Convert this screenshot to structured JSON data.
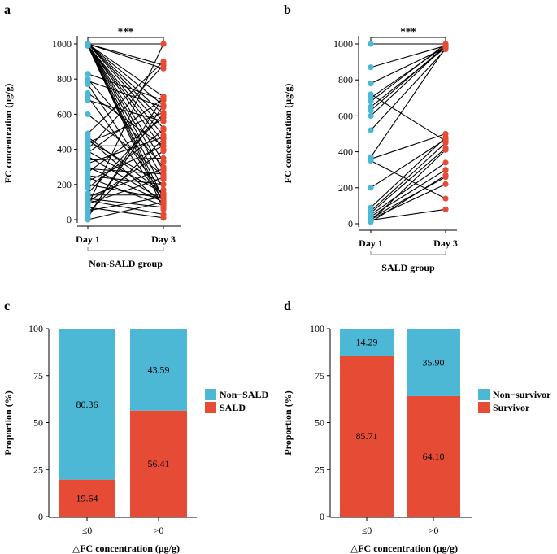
{
  "colors": {
    "blue": "#4cb8d5",
    "red": "#e64b35",
    "line": "#000000",
    "axis": "#000000"
  },
  "chart_data": [
    {
      "panel": "a",
      "type": "line",
      "subtype": "paired-dot",
      "ylabel": "FC concentration (μg/g)",
      "categories": [
        "Day 1",
        "Day 3"
      ],
      "group_label": "Non-SALD group",
      "significance": "***",
      "ylim": [
        0,
        1000
      ],
      "yticks": [
        "0",
        "200",
        "400",
        "600",
        "800",
        "1000"
      ],
      "pairs": [
        [
          1000,
          1000
        ],
        [
          1000,
          880
        ],
        [
          1000,
          860
        ],
        [
          1000,
          700
        ],
        [
          1000,
          650
        ],
        [
          1000,
          600
        ],
        [
          1000,
          560
        ],
        [
          1000,
          520
        ],
        [
          990,
          480
        ],
        [
          990,
          440
        ],
        [
          990,
          400
        ],
        [
          990,
          330
        ],
        [
          990,
          280
        ],
        [
          990,
          230
        ],
        [
          990,
          170
        ],
        [
          990,
          120
        ],
        [
          990,
          90
        ],
        [
          990,
          60
        ],
        [
          830,
          680
        ],
        [
          800,
          300
        ],
        [
          790,
          640
        ],
        [
          770,
          130
        ],
        [
          720,
          420
        ],
        [
          700,
          110
        ],
        [
          680,
          560
        ],
        [
          600,
          250
        ],
        [
          490,
          900
        ],
        [
          470,
          150
        ],
        [
          460,
          90
        ],
        [
          450,
          200
        ],
        [
          440,
          610
        ],
        [
          420,
          420
        ],
        [
          400,
          880
        ],
        [
          390,
          150
        ],
        [
          380,
          690
        ],
        [
          360,
          110
        ],
        [
          340,
          350
        ],
        [
          320,
          470
        ],
        [
          300,
          100
        ],
        [
          290,
          260
        ],
        [
          270,
          580
        ],
        [
          250,
          200
        ],
        [
          240,
          80
        ],
        [
          220,
          420
        ],
        [
          200,
          120
        ],
        [
          180,
          510
        ],
        [
          150,
          600
        ],
        [
          140,
          140
        ],
        [
          130,
          290
        ],
        [
          120,
          70
        ],
        [
          110,
          30
        ],
        [
          100,
          390
        ],
        [
          90,
          240
        ],
        [
          80,
          1000
        ],
        [
          70,
          10
        ],
        [
          50,
          130
        ],
        [
          40,
          460
        ],
        [
          20,
          650
        ],
        [
          10,
          700
        ],
        [
          0,
          100
        ]
      ]
    },
    {
      "panel": "b",
      "type": "line",
      "subtype": "paired-dot",
      "ylabel": "FC concentration (μg/g)",
      "categories": [
        "Day 1",
        "Day 3"
      ],
      "group_label": "SALD group",
      "significance": "***",
      "ylim": [
        0,
        1000
      ],
      "yticks": [
        "0",
        "200",
        "400",
        "600",
        "800",
        "1000"
      ],
      "pairs": [
        [
          1000,
          1000
        ],
        [
          870,
          990
        ],
        [
          780,
          980
        ],
        [
          720,
          460
        ],
        [
          700,
          990
        ],
        [
          680,
          1000
        ],
        [
          650,
          980
        ],
        [
          630,
          990
        ],
        [
          600,
          990
        ],
        [
          520,
          970
        ],
        [
          370,
          980
        ],
        [
          360,
          500
        ],
        [
          350,
          140
        ],
        [
          200,
          470
        ],
        [
          90,
          480
        ],
        [
          70,
          450
        ],
        [
          60,
          420
        ],
        [
          50,
          340
        ],
        [
          40,
          300
        ],
        [
          30,
          260
        ],
        [
          25,
          220
        ],
        [
          20,
          80
        ],
        [
          15,
          410
        ],
        [
          10,
          270
        ]
      ]
    },
    {
      "panel": "c",
      "type": "bar",
      "subtype": "stacked-percent",
      "xlabel": "△FC concentration (μg/g)",
      "ylabel": "Proportion (%)",
      "categories": [
        "≤0",
        ">0"
      ],
      "ylim": [
        0,
        100
      ],
      "yticks": [
        "0",
        "25",
        "50",
        "75",
        "100"
      ],
      "series": [
        {
          "name": "SALD",
          "color": "#e64b35",
          "values": [
            19.64,
            56.41
          ],
          "labels": [
            "19.64",
            "56.41"
          ]
        },
        {
          "name": "Non−SALD",
          "color": "#4cb8d5",
          "values": [
            80.36,
            43.59
          ],
          "labels": [
            "80.36",
            "43.59"
          ]
        }
      ],
      "legend": [
        "Non−SALD",
        "SALD"
      ]
    },
    {
      "panel": "d",
      "type": "bar",
      "subtype": "stacked-percent",
      "xlabel": "△FC concentration (μg/g)",
      "ylabel": "Proportion (%)",
      "categories": [
        "≤0",
        ">0"
      ],
      "ylim": [
        0,
        100
      ],
      "yticks": [
        "0",
        "25",
        "50",
        "75",
        "100"
      ],
      "series": [
        {
          "name": "Survivor",
          "color": "#e64b35",
          "values": [
            85.71,
            64.1
          ],
          "labels": [
            "85.71",
            "64.10"
          ]
        },
        {
          "name": "Non−survivor",
          "color": "#4cb8d5",
          "values": [
            14.29,
            35.9
          ],
          "labels": [
            "14.29",
            "35.90"
          ]
        }
      ],
      "legend": [
        "Non−survivor",
        "Survivor"
      ]
    }
  ]
}
